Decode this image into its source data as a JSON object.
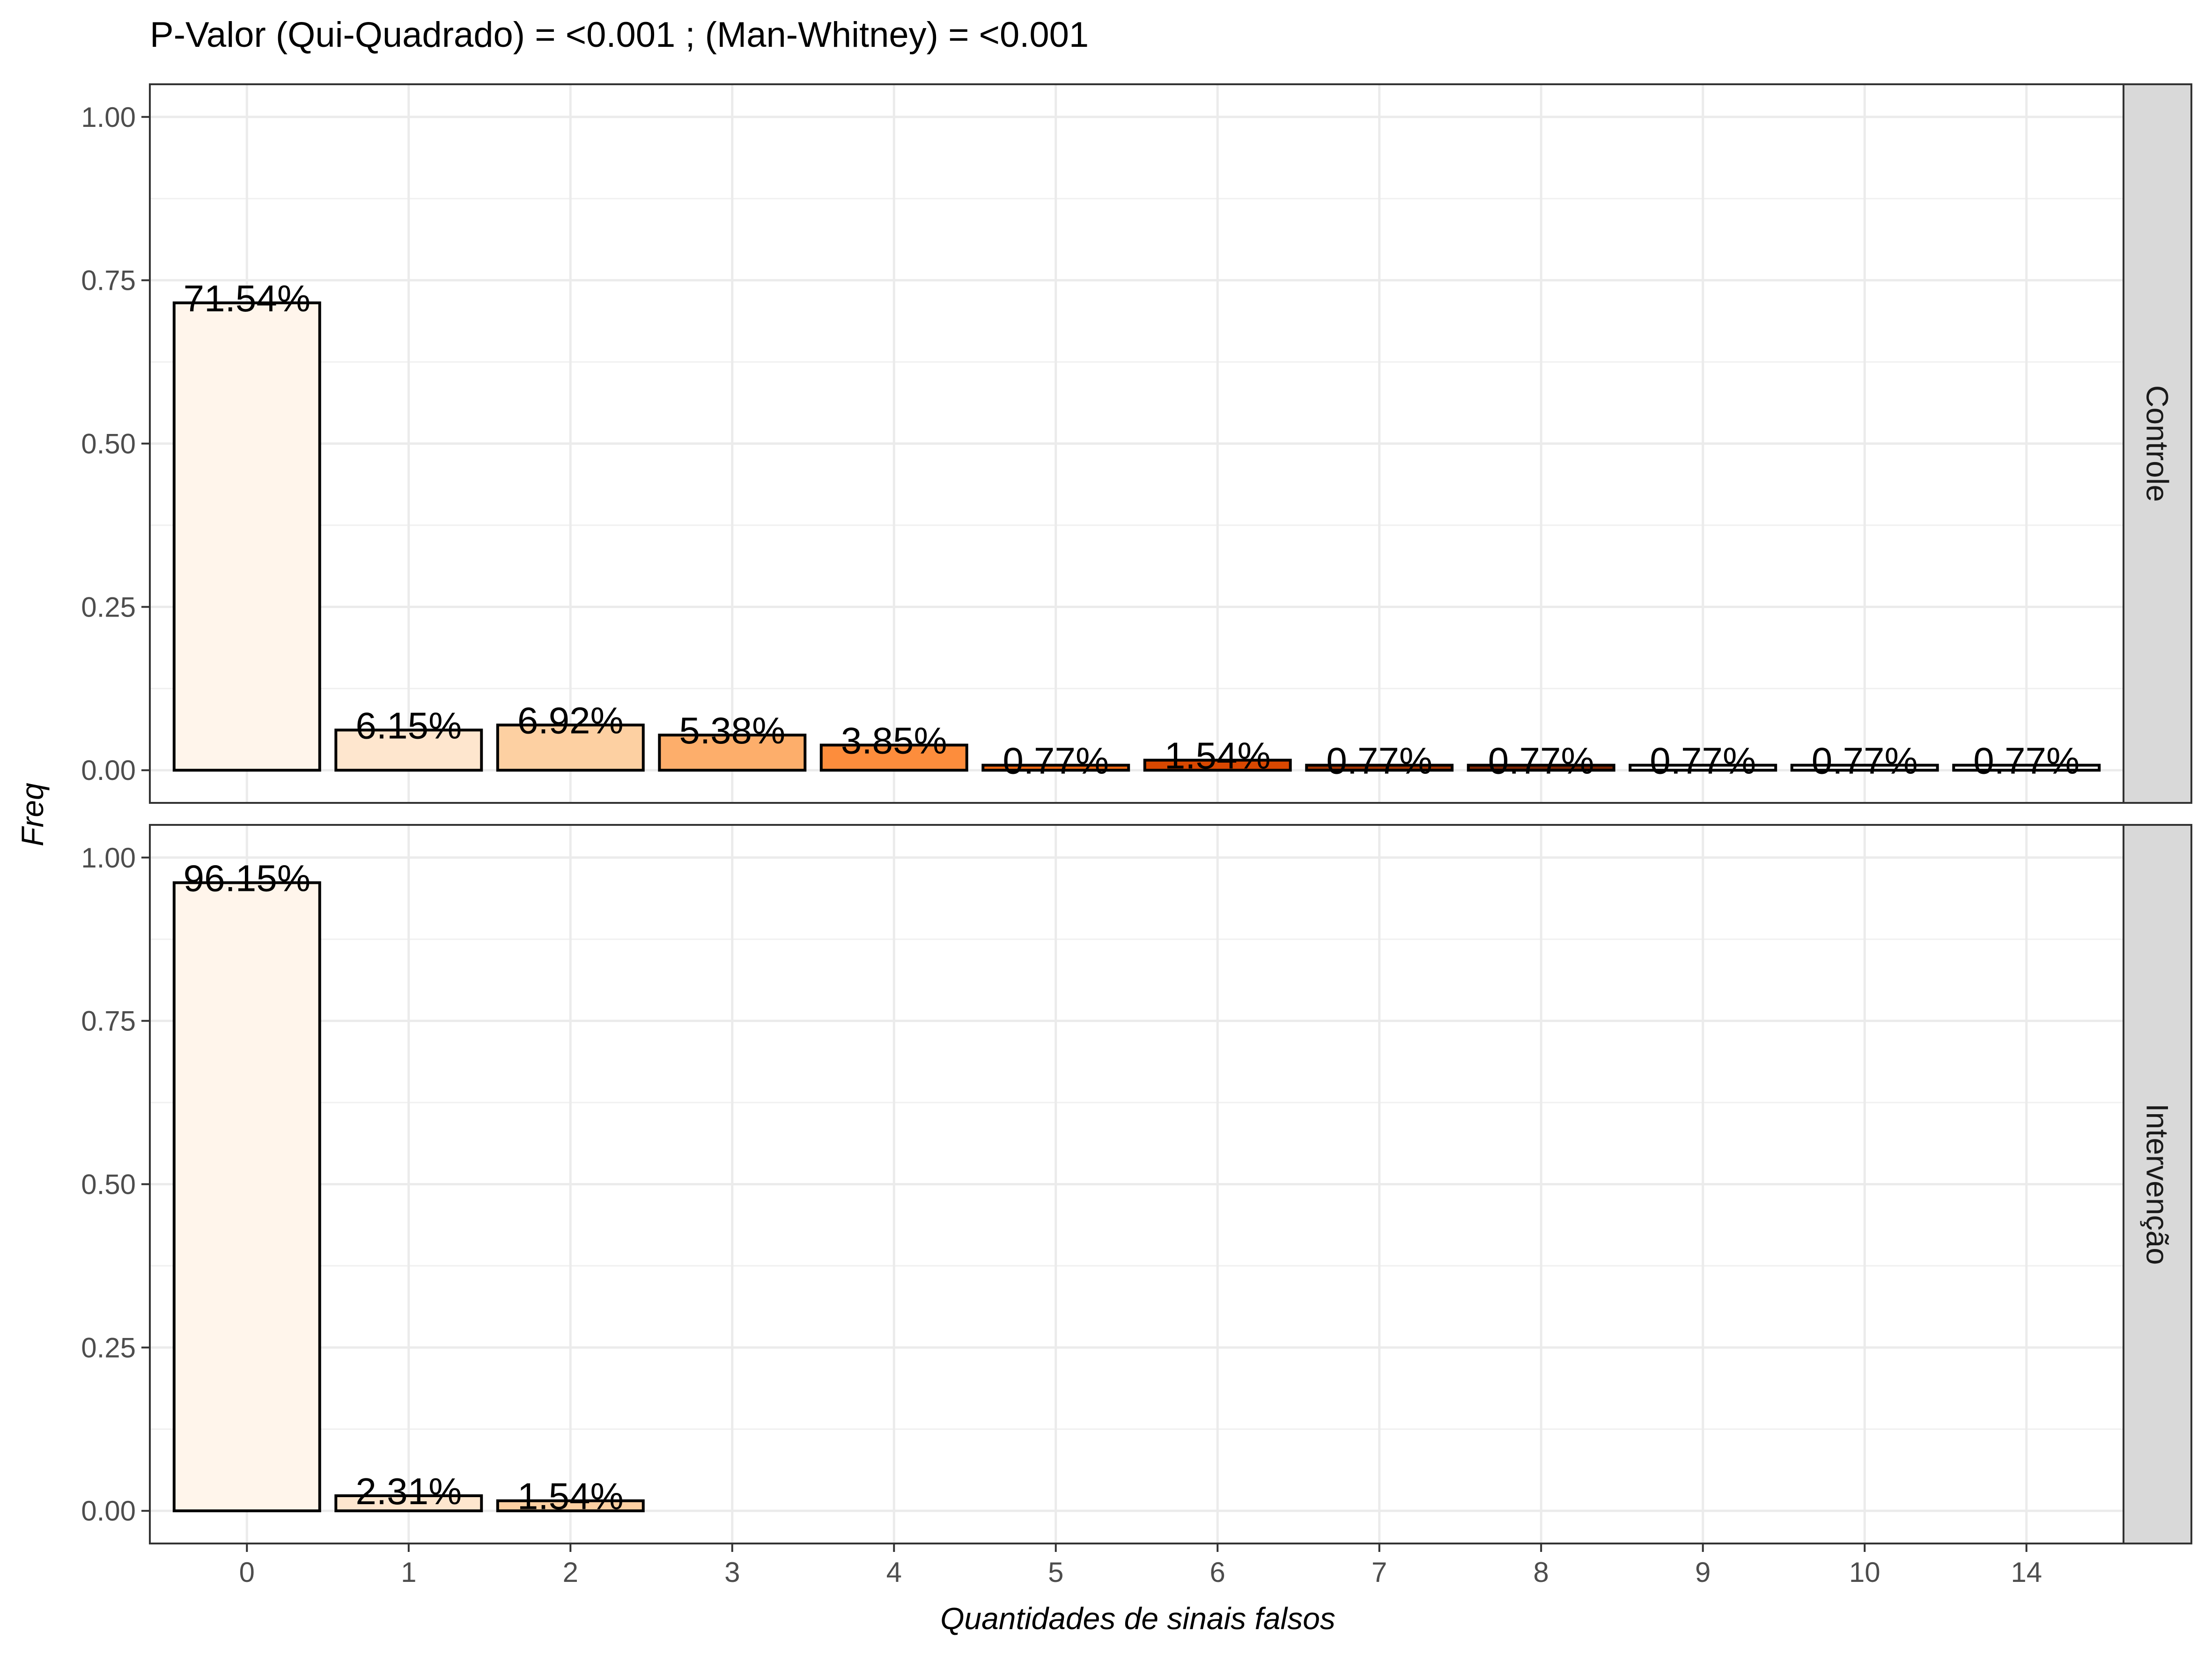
{
  "chart_data": {
    "type": "bar",
    "title": "P-Valor (Qui-Quadrado) = <0.001 ; (Man-Whitney) = <0.001",
    "xlabel": "Quantidades de sinais falsos",
    "ylabel": "Freq",
    "categories": [
      "0",
      "1",
      "2",
      "3",
      "4",
      "5",
      "6",
      "7",
      "8",
      "9",
      "10",
      "14"
    ],
    "ylim": [
      -0.05,
      1.05
    ],
    "yticks": [
      0.0,
      0.25,
      0.5,
      0.75,
      1.0
    ],
    "ytick_labels": [
      "0.00",
      "0.25",
      "0.50",
      "0.75",
      "1.00"
    ],
    "grid": true,
    "fill_colors": [
      "#fff5eb",
      "#fee6ce",
      "#fdd0a2",
      "#fdae6b",
      "#fd8d3c",
      "#f16913",
      "#d94801",
      "#a63603",
      "#7f2704",
      "#ffffff",
      "#ffffff",
      "#ffffff"
    ],
    "panels": [
      {
        "name": "Controle",
        "values": [
          0.7154,
          0.0615,
          0.0692,
          0.0538,
          0.0385,
          0.0077,
          0.0154,
          0.0077,
          0.0077,
          0.0077,
          0.0077,
          0.0077
        ],
        "labels": [
          "71.54%",
          "6.15%",
          "6.92%",
          "5.38%",
          "3.85%",
          "0.77%",
          "1.54%",
          "0.77%",
          "0.77%",
          "0.77%",
          "0.77%",
          "0.77%"
        ]
      },
      {
        "name": "Intervenção",
        "values": [
          0.9615,
          0.0231,
          0.0154
        ],
        "labels": [
          "96.15%",
          "2.31%",
          "1.54%"
        ]
      }
    ]
  }
}
